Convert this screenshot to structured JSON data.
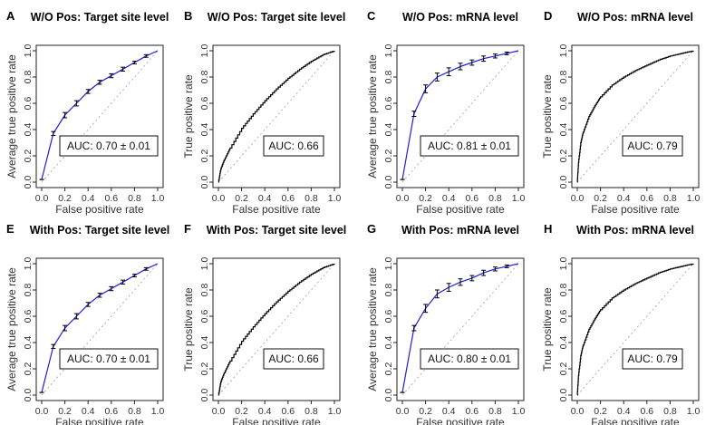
{
  "figure": {
    "colors": {
      "avg_curve": "#1f1fd6",
      "single_curve": "#000000",
      "diagonal": "#b0b0b0",
      "error_bar": "#000000"
    }
  },
  "chart_data": [
    {
      "id": "A",
      "type": "line",
      "title": "W/O Pos: Target site level",
      "xlabel": "False positive rate",
      "ylabel": "Average true positive rate",
      "xlim": [
        0,
        1
      ],
      "ylim": [
        0,
        1
      ],
      "xticks": [
        "0.0",
        "0.2",
        "0.4",
        "0.6",
        "0.8",
        "1.0"
      ],
      "yticks": [
        "0.0",
        "0.2",
        "0.4",
        "0.6",
        "0.8",
        "1.0"
      ],
      "averaged": true,
      "auc_text": "AUC: 0.70 ± 0.01",
      "x": [
        0,
        0.1,
        0.2,
        0.3,
        0.4,
        0.5,
        0.6,
        0.7,
        0.8,
        0.9,
        1.0
      ],
      "y": [
        0.02,
        0.37,
        0.51,
        0.6,
        0.69,
        0.76,
        0.81,
        0.86,
        0.91,
        0.96,
        1.0
      ],
      "err": [
        0,
        0.015,
        0.02,
        0.02,
        0.015,
        0.015,
        0.015,
        0.015,
        0.01,
        0.01,
        0
      ]
    },
    {
      "id": "B",
      "type": "line",
      "title": "W/O Pos: Target site level",
      "xlabel": "False positive rate",
      "ylabel": "True positive rate",
      "xlim": [
        0,
        1
      ],
      "ylim": [
        0,
        1
      ],
      "xticks": [
        "0.0",
        "0.2",
        "0.4",
        "0.6",
        "0.8",
        "1.0"
      ],
      "yticks": [
        "0.0",
        "0.2",
        "0.4",
        "0.6",
        "0.8",
        "1.0"
      ],
      "averaged": false,
      "auc_text": "AUC: 0.66",
      "x": [
        0,
        0.02,
        0.05,
        0.1,
        0.2,
        0.3,
        0.4,
        0.5,
        0.6,
        0.7,
        0.8,
        0.9,
        1.0
      ],
      "y": [
        0,
        0.1,
        0.17,
        0.26,
        0.41,
        0.52,
        0.62,
        0.71,
        0.79,
        0.86,
        0.92,
        0.97,
        1.0
      ]
    },
    {
      "id": "C",
      "type": "line",
      "title": "W/O Pos: mRNA level",
      "xlabel": "False positive rate",
      "ylabel": "Average true positive rate",
      "xlim": [
        0,
        1
      ],
      "ylim": [
        0,
        1
      ],
      "xticks": [
        "0.0",
        "0.2",
        "0.4",
        "0.6",
        "0.8",
        "1.0"
      ],
      "yticks": [
        "0.0",
        "0.2",
        "0.4",
        "0.6",
        "0.8",
        "1.0"
      ],
      "averaged": true,
      "auc_text": "AUC: 0.81 ± 0.01",
      "x": [
        0,
        0.1,
        0.2,
        0.3,
        0.4,
        0.5,
        0.6,
        0.7,
        0.8,
        0.9,
        1.0
      ],
      "y": [
        0.02,
        0.52,
        0.71,
        0.8,
        0.84,
        0.88,
        0.91,
        0.94,
        0.96,
        0.98,
        1.0
      ],
      "err": [
        0,
        0.02,
        0.03,
        0.03,
        0.03,
        0.025,
        0.02,
        0.02,
        0.015,
        0.01,
        0
      ]
    },
    {
      "id": "D",
      "type": "line",
      "title": "W/O Pos: mRNA level",
      "xlabel": "False positive rate",
      "ylabel": "True positive rate",
      "xlim": [
        0,
        1
      ],
      "ylim": [
        0,
        1
      ],
      "xticks": [
        "0.0",
        "0.2",
        "0.4",
        "0.6",
        "0.8",
        "1.0"
      ],
      "yticks": [
        "0.0",
        "0.2",
        "0.4",
        "0.6",
        "0.8",
        "1.0"
      ],
      "averaged": false,
      "auc_text": "AUC: 0.79",
      "x": [
        0,
        0.01,
        0.03,
        0.05,
        0.1,
        0.15,
        0.2,
        0.3,
        0.4,
        0.5,
        0.6,
        0.7,
        0.8,
        0.9,
        1.0
      ],
      "y": [
        0,
        0.15,
        0.3,
        0.38,
        0.5,
        0.58,
        0.65,
        0.74,
        0.8,
        0.85,
        0.89,
        0.93,
        0.96,
        0.98,
        1.0
      ]
    },
    {
      "id": "E",
      "type": "line",
      "title": "With Pos: Target site level",
      "xlabel": "False positive rate",
      "ylabel": "Average true positive rate",
      "xlim": [
        0,
        1
      ],
      "ylim": [
        0,
        1
      ],
      "xticks": [
        "0.0",
        "0.2",
        "0.4",
        "0.6",
        "0.8",
        "1.0"
      ],
      "yticks": [
        "0.0",
        "0.2",
        "0.4",
        "0.6",
        "0.8",
        "1.0"
      ],
      "averaged": true,
      "auc_text": "AUC: 0.70 ± 0.01",
      "x": [
        0,
        0.1,
        0.2,
        0.3,
        0.4,
        0.5,
        0.6,
        0.7,
        0.8,
        0.9,
        1.0
      ],
      "y": [
        0.02,
        0.37,
        0.51,
        0.6,
        0.69,
        0.76,
        0.81,
        0.86,
        0.91,
        0.96,
        1.0
      ],
      "err": [
        0,
        0.015,
        0.02,
        0.02,
        0.015,
        0.015,
        0.015,
        0.015,
        0.01,
        0.01,
        0
      ]
    },
    {
      "id": "F",
      "type": "line",
      "title": "With Pos: Target site level",
      "xlabel": "False positive rate",
      "ylabel": "True positive rate",
      "xlim": [
        0,
        1
      ],
      "ylim": [
        0,
        1
      ],
      "xticks": [
        "0.0",
        "0.2",
        "0.4",
        "0.6",
        "0.8",
        "1.0"
      ],
      "yticks": [
        "0.0",
        "0.2",
        "0.4",
        "0.6",
        "0.8",
        "1.0"
      ],
      "averaged": false,
      "auc_text": "AUC: 0.66",
      "x": [
        0,
        0.02,
        0.05,
        0.1,
        0.2,
        0.3,
        0.4,
        0.5,
        0.6,
        0.7,
        0.8,
        0.9,
        1.0
      ],
      "y": [
        0,
        0.1,
        0.17,
        0.26,
        0.41,
        0.52,
        0.62,
        0.71,
        0.79,
        0.86,
        0.92,
        0.97,
        1.0
      ]
    },
    {
      "id": "G",
      "type": "line",
      "title": "With Pos: mRNA level",
      "xlabel": "False positive rate",
      "ylabel": "Average true positive rate",
      "xlim": [
        0,
        1
      ],
      "ylim": [
        0,
        1
      ],
      "xticks": [
        "0.0",
        "0.2",
        "0.4",
        "0.6",
        "0.8",
        "1.0"
      ],
      "yticks": [
        "0.0",
        "0.2",
        "0.4",
        "0.6",
        "0.8",
        "1.0"
      ],
      "averaged": true,
      "auc_text": "AUC: 0.80 ± 0.01",
      "x": [
        0,
        0.1,
        0.2,
        0.3,
        0.4,
        0.5,
        0.6,
        0.7,
        0.8,
        0.9,
        1.0
      ],
      "y": [
        0.02,
        0.51,
        0.66,
        0.77,
        0.82,
        0.86,
        0.89,
        0.93,
        0.96,
        0.98,
        1.0
      ],
      "err": [
        0,
        0.02,
        0.03,
        0.03,
        0.03,
        0.025,
        0.02,
        0.02,
        0.015,
        0.01,
        0
      ]
    },
    {
      "id": "H",
      "type": "line",
      "title": "With Pos: mRNA level",
      "xlabel": "False positive rate",
      "ylabel": "True positive rate",
      "xlim": [
        0,
        1
      ],
      "ylim": [
        0,
        1
      ],
      "xticks": [
        "0.0",
        "0.2",
        "0.4",
        "0.6",
        "0.8",
        "1.0"
      ],
      "yticks": [
        "0.0",
        "0.2",
        "0.4",
        "0.6",
        "0.8",
        "1.0"
      ],
      "averaged": false,
      "auc_text": "AUC: 0.79",
      "x": [
        0,
        0.01,
        0.03,
        0.05,
        0.1,
        0.15,
        0.2,
        0.3,
        0.4,
        0.5,
        0.6,
        0.7,
        0.8,
        0.9,
        1.0
      ],
      "y": [
        0,
        0.15,
        0.3,
        0.38,
        0.5,
        0.58,
        0.65,
        0.74,
        0.8,
        0.85,
        0.89,
        0.93,
        0.96,
        0.98,
        1.0
      ]
    }
  ]
}
